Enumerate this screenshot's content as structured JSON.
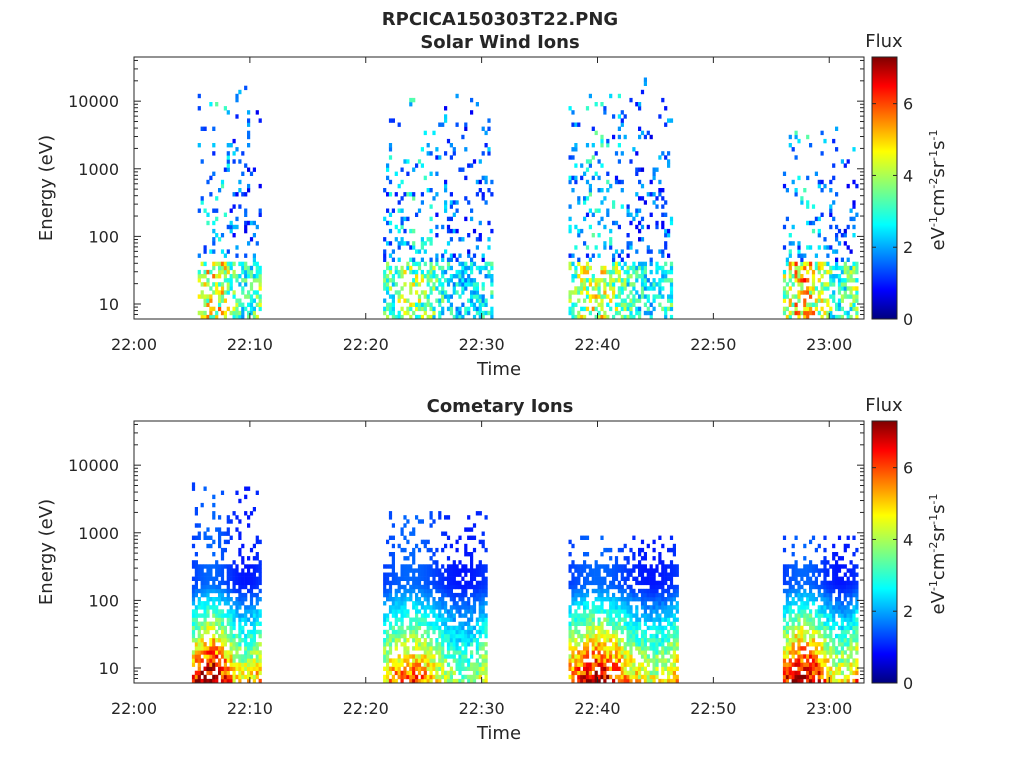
{
  "figure_title": "RPCICA150303T22.PNG",
  "chart_data": [
    {
      "type": "heatmap",
      "title": "Solar Wind Ions",
      "xlabel": "Time",
      "ylabel": "Energy (eV)",
      "x_range": [
        "22:00",
        "23:03"
      ],
      "y_range": [
        6,
        45000
      ],
      "y_scale": "log",
      "x_ticks": [
        "22:00",
        "22:10",
        "22:20",
        "22:30",
        "22:40",
        "22:50",
        "23:00"
      ],
      "y_ticks": [
        "10",
        "100",
        "1000",
        "10000"
      ],
      "colorbar": {
        "label": "Flux",
        "unit": "eV-1cm-2sr-1s-1",
        "ticks": [
          "0",
          "2",
          "4",
          "6"
        ],
        "range": [
          0,
          7.3
        ],
        "colormap": "jet"
      },
      "bursts": [
        {
          "t_start": "22:05.5",
          "t_end": "22:11",
          "low_energy_flux_max": 5.5,
          "max_energy_eV": 15000
        },
        {
          "t_start": "22:21.5",
          "t_end": "22:31",
          "low_energy_flux_max": 4.5,
          "max_energy_eV": 13000
        },
        {
          "t_start": "22:37.5",
          "t_end": "22:46.5",
          "low_energy_flux_max": 5.0,
          "max_energy_eV": 20000
        },
        {
          "t_start": "22:56",
          "t_end": "23:02.5",
          "low_energy_flux_max": 5.8,
          "max_energy_eV": 4000
        }
      ]
    },
    {
      "type": "heatmap",
      "title": "Cometary Ions",
      "xlabel": "Time",
      "ylabel": "Energy (eV)",
      "x_range": [
        "22:00",
        "23:03"
      ],
      "y_range": [
        6,
        45000
      ],
      "y_scale": "log",
      "x_ticks": [
        "22:00",
        "22:10",
        "22:20",
        "22:30",
        "22:40",
        "22:50",
        "23:00"
      ],
      "y_ticks": [
        "10",
        "100",
        "1000",
        "10000"
      ],
      "colorbar": {
        "label": "Flux",
        "unit": "eV-1cm-2sr-1s-1",
        "ticks": [
          "0",
          "2",
          "4",
          "6"
        ],
        "range": [
          0,
          7.3
        ],
        "colormap": "jet"
      },
      "bursts": [
        {
          "t_start": "22:05",
          "t_end": "22:11",
          "low_energy_flux_max": 6.8,
          "max_energy_eV": 5500
        },
        {
          "t_start": "22:21.5",
          "t_end": "22:30.5",
          "low_energy_flux_max": 5.5,
          "max_energy_eV": 2000
        },
        {
          "t_start": "22:37.5",
          "t_end": "22:47",
          "low_energy_flux_max": 6.5,
          "max_energy_eV": 800
        },
        {
          "t_start": "22:56",
          "t_end": "23:02.5",
          "low_energy_flux_max": 6.8,
          "max_energy_eV": 800
        }
      ]
    }
  ]
}
